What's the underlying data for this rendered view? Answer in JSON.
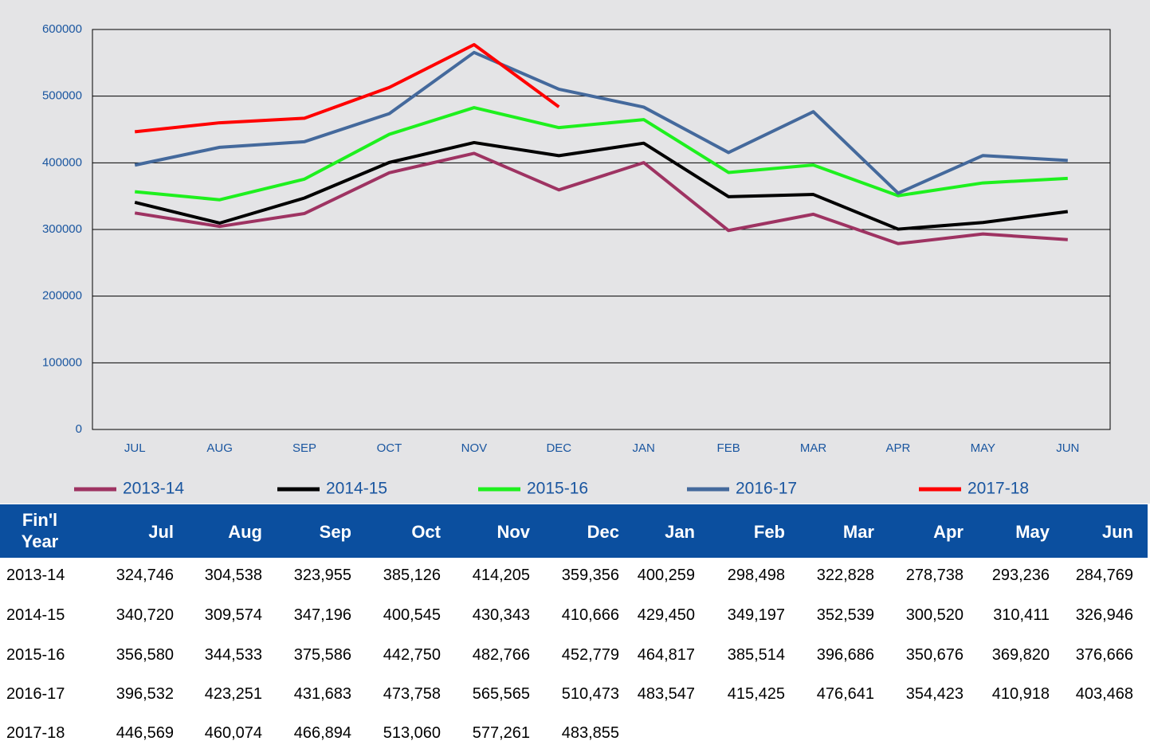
{
  "chart_data": {
    "type": "line",
    "categories": [
      "JUL",
      "AUG",
      "SEP",
      "OCT",
      "NOV",
      "DEC",
      "JAN",
      "FEB",
      "MAR",
      "APR",
      "MAY",
      "JUN"
    ],
    "series": [
      {
        "name": "2013-14",
        "color": "#9e3362",
        "values": [
          324746,
          304538,
          323955,
          385126,
          414205,
          359356,
          400259,
          298498,
          322828,
          278738,
          293236,
          284769
        ]
      },
      {
        "name": "2014-15",
        "color": "#000000",
        "values": [
          340720,
          309574,
          347196,
          400545,
          430343,
          410666,
          429450,
          349197,
          352539,
          300520,
          310411,
          326946
        ]
      },
      {
        "name": "2015-16",
        "color": "#1ef01e",
        "values": [
          356580,
          344533,
          375586,
          442750,
          482766,
          452779,
          464817,
          385514,
          396686,
          350676,
          369820,
          376666
        ]
      },
      {
        "name": "2016-17",
        "color": "#44699c",
        "values": [
          396532,
          423251,
          431683,
          473758,
          565565,
          510473,
          483547,
          415425,
          476641,
          354423,
          410918,
          403468
        ]
      },
      {
        "name": "2017-18",
        "color": "#ff0000",
        "values": [
          446569,
          460074,
          466894,
          513060,
          577261,
          483855,
          null,
          null,
          null,
          null,
          null,
          null
        ]
      }
    ],
    "ylim": [
      0,
      600000
    ],
    "yticks": [
      0,
      100000,
      200000,
      300000,
      400000,
      500000,
      600000
    ],
    "grid": true
  },
  "table": {
    "header": [
      "Fin'l Year",
      "Jul",
      "Aug",
      "Sep",
      "Oct",
      "Nov",
      "Dec",
      "Jan",
      "Feb",
      "Mar",
      "Apr",
      "May",
      "Jun"
    ],
    "rows": [
      [
        "2013-14",
        "324,746",
        "304,538",
        "323,955",
        "385,126",
        "414,205",
        "359,356",
        "400,259",
        "298,498",
        "322,828",
        "278,738",
        "293,236",
        "284,769"
      ],
      [
        "2014-15",
        "340,720",
        "309,574",
        "347,196",
        "400,545",
        "430,343",
        "410,666",
        "429,450",
        "349,197",
        "352,539",
        "300,520",
        "310,411",
        "326,946"
      ],
      [
        "2015-16",
        "356,580",
        "344,533",
        "375,586",
        "442,750",
        "482,766",
        "452,779",
        "464,817",
        "385,514",
        "396,686",
        "350,676",
        "369,820",
        "376,666"
      ],
      [
        "2016-17",
        "396,532",
        "423,251",
        "431,683",
        "473,758",
        "565,565",
        "510,473",
        "483,547",
        "415,425",
        "476,641",
        "354,423",
        "410,918",
        "403,468"
      ],
      [
        "2017-18",
        "446,569",
        "460,074",
        "466,894",
        "513,060",
        "577,261",
        "483,855"
      ]
    ]
  }
}
